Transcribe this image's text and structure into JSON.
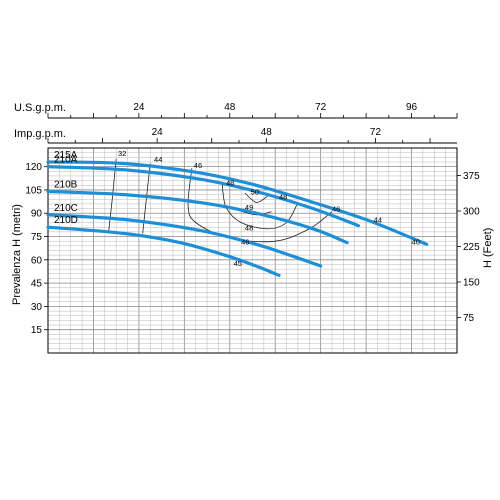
{
  "chart_data": {
    "type": "line",
    "top_axis_usgpm": {
      "title": "U.S.g.p.m.",
      "ticks": [
        "24",
        "48",
        "72",
        "96"
      ],
      "tick_values": [
        24,
        48,
        72,
        96
      ]
    },
    "top_axis_impgpm": {
      "title": "Imp.g.p.m.",
      "ticks": [
        "24",
        "48",
        "72"
      ],
      "tick_values": [
        24,
        48,
        72
      ]
    },
    "left_axis": {
      "title": "Prevalenza H (metri)",
      "ticks": [
        "15",
        "30",
        "45",
        "60",
        "75",
        "90",
        "105",
        "120"
      ],
      "tick_values": [
        15,
        30,
        45,
        60,
        75,
        90,
        105,
        120
      ],
      "range": [
        0,
        132
      ]
    },
    "right_axis": {
      "title": "H (Feet)",
      "ticks": [
        "75",
        "150",
        "225",
        "300",
        "375"
      ],
      "tick_values": [
        75,
        150,
        225,
        300,
        375
      ]
    },
    "x_range_usgpm": [
      0,
      108
    ],
    "series": [
      {
        "name": "215A",
        "points": [
          [
            0,
            123
          ],
          [
            20,
            122
          ],
          [
            40,
            116
          ],
          [
            55,
            108
          ],
          [
            70,
            97
          ],
          [
            85,
            85
          ],
          [
            100,
            70
          ]
        ]
      },
      {
        "name": "210A",
        "points": [
          [
            0,
            120
          ],
          [
            20,
            118
          ],
          [
            40,
            112
          ],
          [
            55,
            104
          ],
          [
            70,
            93
          ],
          [
            82,
            82
          ]
        ]
      },
      {
        "name": "210B",
        "points": [
          [
            0,
            104
          ],
          [
            20,
            102
          ],
          [
            40,
            97
          ],
          [
            55,
            90
          ],
          [
            70,
            80
          ],
          [
            79,
            71
          ]
        ]
      },
      {
        "name": "210C",
        "points": [
          [
            0,
            89
          ],
          [
            20,
            86
          ],
          [
            40,
            79
          ],
          [
            55,
            70
          ],
          [
            65,
            62
          ],
          [
            72,
            56
          ]
        ]
      },
      {
        "name": "210D",
        "points": [
          [
            0,
            81
          ],
          [
            20,
            77
          ],
          [
            35,
            71
          ],
          [
            48,
            62
          ],
          [
            56,
            55
          ],
          [
            61,
            50
          ]
        ]
      }
    ],
    "efficiency_lines": [
      {
        "label": "32",
        "points": [
          [
            18,
            125
          ],
          [
            17,
            100
          ],
          [
            16,
            78
          ]
        ]
      },
      {
        "label": "44",
        "points": [
          [
            27,
            122
          ],
          [
            26,
            100
          ],
          [
            25,
            77
          ]
        ]
      },
      {
        "label": "46",
        "points": [
          [
            38,
            119
          ],
          [
            37,
            95
          ],
          [
            39,
            84
          ],
          [
            48,
            74
          ],
          [
            60,
            72
          ],
          [
            69,
            80
          ],
          [
            75,
            91
          ]
        ]
      },
      {
        "label": "48",
        "points": [
          [
            46,
            109
          ],
          [
            47,
            94
          ],
          [
            51,
            84
          ],
          [
            58,
            80
          ],
          [
            63,
            84
          ],
          [
            66,
            97
          ]
        ]
      },
      {
        "label": "49",
        "points": [
          [
            50,
            92
          ],
          [
            55,
            89
          ],
          [
            59,
            91
          ]
        ]
      },
      {
        "label": "50",
        "points": [
          [
            52,
            103
          ],
          [
            55,
            97
          ],
          [
            58,
            101
          ]
        ]
      },
      {
        "label": "40",
        "points": [
          [
            96,
            70
          ]
        ]
      }
    ],
    "labels_on_curves": [
      {
        "text": "32",
        "at": [
          18.5,
          127
        ]
      },
      {
        "text": "44",
        "at": [
          28,
          123
        ]
      },
      {
        "text": "46",
        "at": [
          38.5,
          119
        ]
      },
      {
        "text": "48",
        "at": [
          47,
          108
        ]
      },
      {
        "text": "50",
        "at": [
          53.5,
          102
        ]
      },
      {
        "text": "48",
        "at": [
          61,
          99
        ]
      },
      {
        "text": "49",
        "at": [
          52,
          92
        ]
      },
      {
        "text": "48",
        "at": [
          52,
          79
        ]
      },
      {
        "text": "46",
        "at": [
          51,
          70
        ]
      },
      {
        "text": "46",
        "at": [
          75,
          91
        ]
      },
      {
        "text": "45",
        "at": [
          49,
          56
        ]
      },
      {
        "text": "44",
        "at": [
          86,
          84
        ]
      },
      {
        "text": "40",
        "at": [
          96,
          70
        ]
      }
    ]
  }
}
